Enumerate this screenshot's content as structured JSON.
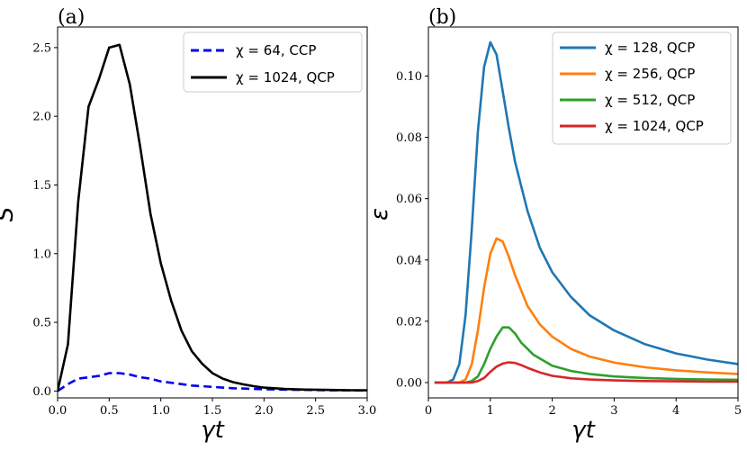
{
  "chart_data": [
    {
      "type": "line",
      "panel_label": "(a)",
      "xlabel": "γt",
      "ylabel": "S̃",
      "xlim": [
        0,
        3
      ],
      "ylim": [
        -0.05,
        2.65
      ],
      "xticks": [
        "0.0",
        "0.5",
        "1.0",
        "1.5",
        "2.0",
        "2.5",
        "3.0"
      ],
      "xtick_values": [
        0,
        0.5,
        1,
        1.5,
        2,
        2.5,
        3
      ],
      "yticks": [
        "0.0",
        "0.5",
        "1.0",
        "1.5",
        "2.0",
        "2.5"
      ],
      "ytick_values": [
        0,
        0.5,
        1,
        1.5,
        2,
        2.5
      ],
      "legend_position": "top-right",
      "series": [
        {
          "name": "χ = 64, CCP",
          "color": "#0000ee",
          "dash": "dashed",
          "x": [
            0,
            0.1,
            0.2,
            0.3,
            0.4,
            0.5,
            0.6,
            0.7,
            0.8,
            0.9,
            1.0,
            1.1,
            1.2,
            1.3,
            1.4,
            1.5,
            1.6,
            1.7,
            1.8,
            1.9,
            2.0,
            2.2,
            2.4,
            2.6,
            2.8,
            3.0
          ],
          "y": [
            0,
            0.05,
            0.09,
            0.1,
            0.11,
            0.13,
            0.13,
            0.12,
            0.1,
            0.09,
            0.07,
            0.06,
            0.05,
            0.04,
            0.035,
            0.03,
            0.025,
            0.02,
            0.018,
            0.015,
            0.013,
            0.01,
            0.008,
            0.006,
            0.005,
            0.004
          ]
        },
        {
          "name": "χ = 1024, QCP",
          "color": "#000000",
          "dash": "solid",
          "x": [
            0,
            0.1,
            0.2,
            0.3,
            0.4,
            0.5,
            0.6,
            0.7,
            0.8,
            0.9,
            1.0,
            1.1,
            1.2,
            1.3,
            1.4,
            1.5,
            1.6,
            1.7,
            1.8,
            1.9,
            2.0,
            2.1,
            2.2,
            2.4,
            2.6,
            2.8,
            3.0
          ],
          "y": [
            0,
            0.34,
            1.38,
            2.07,
            2.27,
            2.5,
            2.52,
            2.23,
            1.78,
            1.29,
            0.93,
            0.66,
            0.44,
            0.29,
            0.2,
            0.13,
            0.09,
            0.065,
            0.048,
            0.035,
            0.025,
            0.02,
            0.015,
            0.01,
            0.008,
            0.006,
            0.005
          ]
        }
      ]
    },
    {
      "type": "line",
      "panel_label": "(b)",
      "xlabel": "γt",
      "ylabel": "ε",
      "xlim": [
        0,
        5
      ],
      "ylim": [
        -0.005,
        0.116
      ],
      "xticks": [
        "0",
        "1",
        "2",
        "3",
        "4",
        "5"
      ],
      "xtick_values": [
        0,
        1,
        2,
        3,
        4,
        5
      ],
      "yticks": [
        "0.00",
        "0.02",
        "0.04",
        "0.06",
        "0.08",
        "0.10"
      ],
      "ytick_values": [
        0,
        0.02,
        0.04,
        0.06,
        0.08,
        0.1
      ],
      "legend_position": "top-right",
      "series": [
        {
          "name": "χ = 128, QCP",
          "color": "#1f77b4",
          "dash": "solid",
          "x": [
            0.1,
            0.3,
            0.4,
            0.5,
            0.6,
            0.7,
            0.8,
            0.9,
            1.0,
            1.1,
            1.2,
            1.3,
            1.4,
            1.6,
            1.8,
            2.0,
            2.3,
            2.6,
            3.0,
            3.5,
            4.0,
            4.5,
            5.0
          ],
          "y": [
            0,
            0,
            0.001,
            0.006,
            0.022,
            0.05,
            0.082,
            0.103,
            0.111,
            0.107,
            0.095,
            0.083,
            0.072,
            0.056,
            0.044,
            0.036,
            0.028,
            0.022,
            0.017,
            0.0125,
            0.0095,
            0.0075,
            0.006
          ]
        },
        {
          "name": "χ = 256, QCP",
          "color": "#ff7f0e",
          "dash": "solid",
          "x": [
            0.1,
            0.5,
            0.6,
            0.7,
            0.8,
            0.9,
            1.0,
            1.1,
            1.2,
            1.3,
            1.4,
            1.6,
            1.8,
            2.0,
            2.3,
            2.6,
            3.0,
            3.5,
            4.0,
            4.5,
            5.0
          ],
          "y": [
            0,
            0,
            0.001,
            0.006,
            0.017,
            0.031,
            0.042,
            0.047,
            0.046,
            0.041,
            0.035,
            0.025,
            0.019,
            0.015,
            0.011,
            0.0085,
            0.0065,
            0.005,
            0.004,
            0.0033,
            0.0028
          ]
        },
        {
          "name": "χ = 512, QCP",
          "color": "#2ca02c",
          "dash": "solid",
          "x": [
            0.1,
            0.6,
            0.7,
            0.8,
            0.9,
            1.0,
            1.1,
            1.2,
            1.3,
            1.4,
            1.5,
            1.7,
            2.0,
            2.3,
            2.6,
            3.0,
            3.5,
            4.0,
            4.5,
            5.0
          ],
          "y": [
            0,
            0,
            0.0005,
            0.002,
            0.006,
            0.011,
            0.015,
            0.018,
            0.018,
            0.016,
            0.013,
            0.009,
            0.0055,
            0.0038,
            0.0028,
            0.002,
            0.0015,
            0.0012,
            0.001,
            0.0009
          ]
        },
        {
          "name": "χ = 1024, QCP",
          "color": "#d62728",
          "dash": "solid",
          "x": [
            0.1,
            0.7,
            0.8,
            0.9,
            1.0,
            1.1,
            1.2,
            1.3,
            1.4,
            1.5,
            1.6,
            1.8,
            2.0,
            2.3,
            2.6,
            3.0,
            3.5,
            4.0,
            4.5,
            5.0
          ],
          "y": [
            0,
            0,
            0.0005,
            0.0015,
            0.0035,
            0.0052,
            0.0062,
            0.0066,
            0.0064,
            0.0057,
            0.0048,
            0.0033,
            0.0022,
            0.0014,
            0.001,
            0.0007,
            0.0005,
            0.0004,
            0.0003,
            0.0003
          ]
        }
      ]
    }
  ]
}
